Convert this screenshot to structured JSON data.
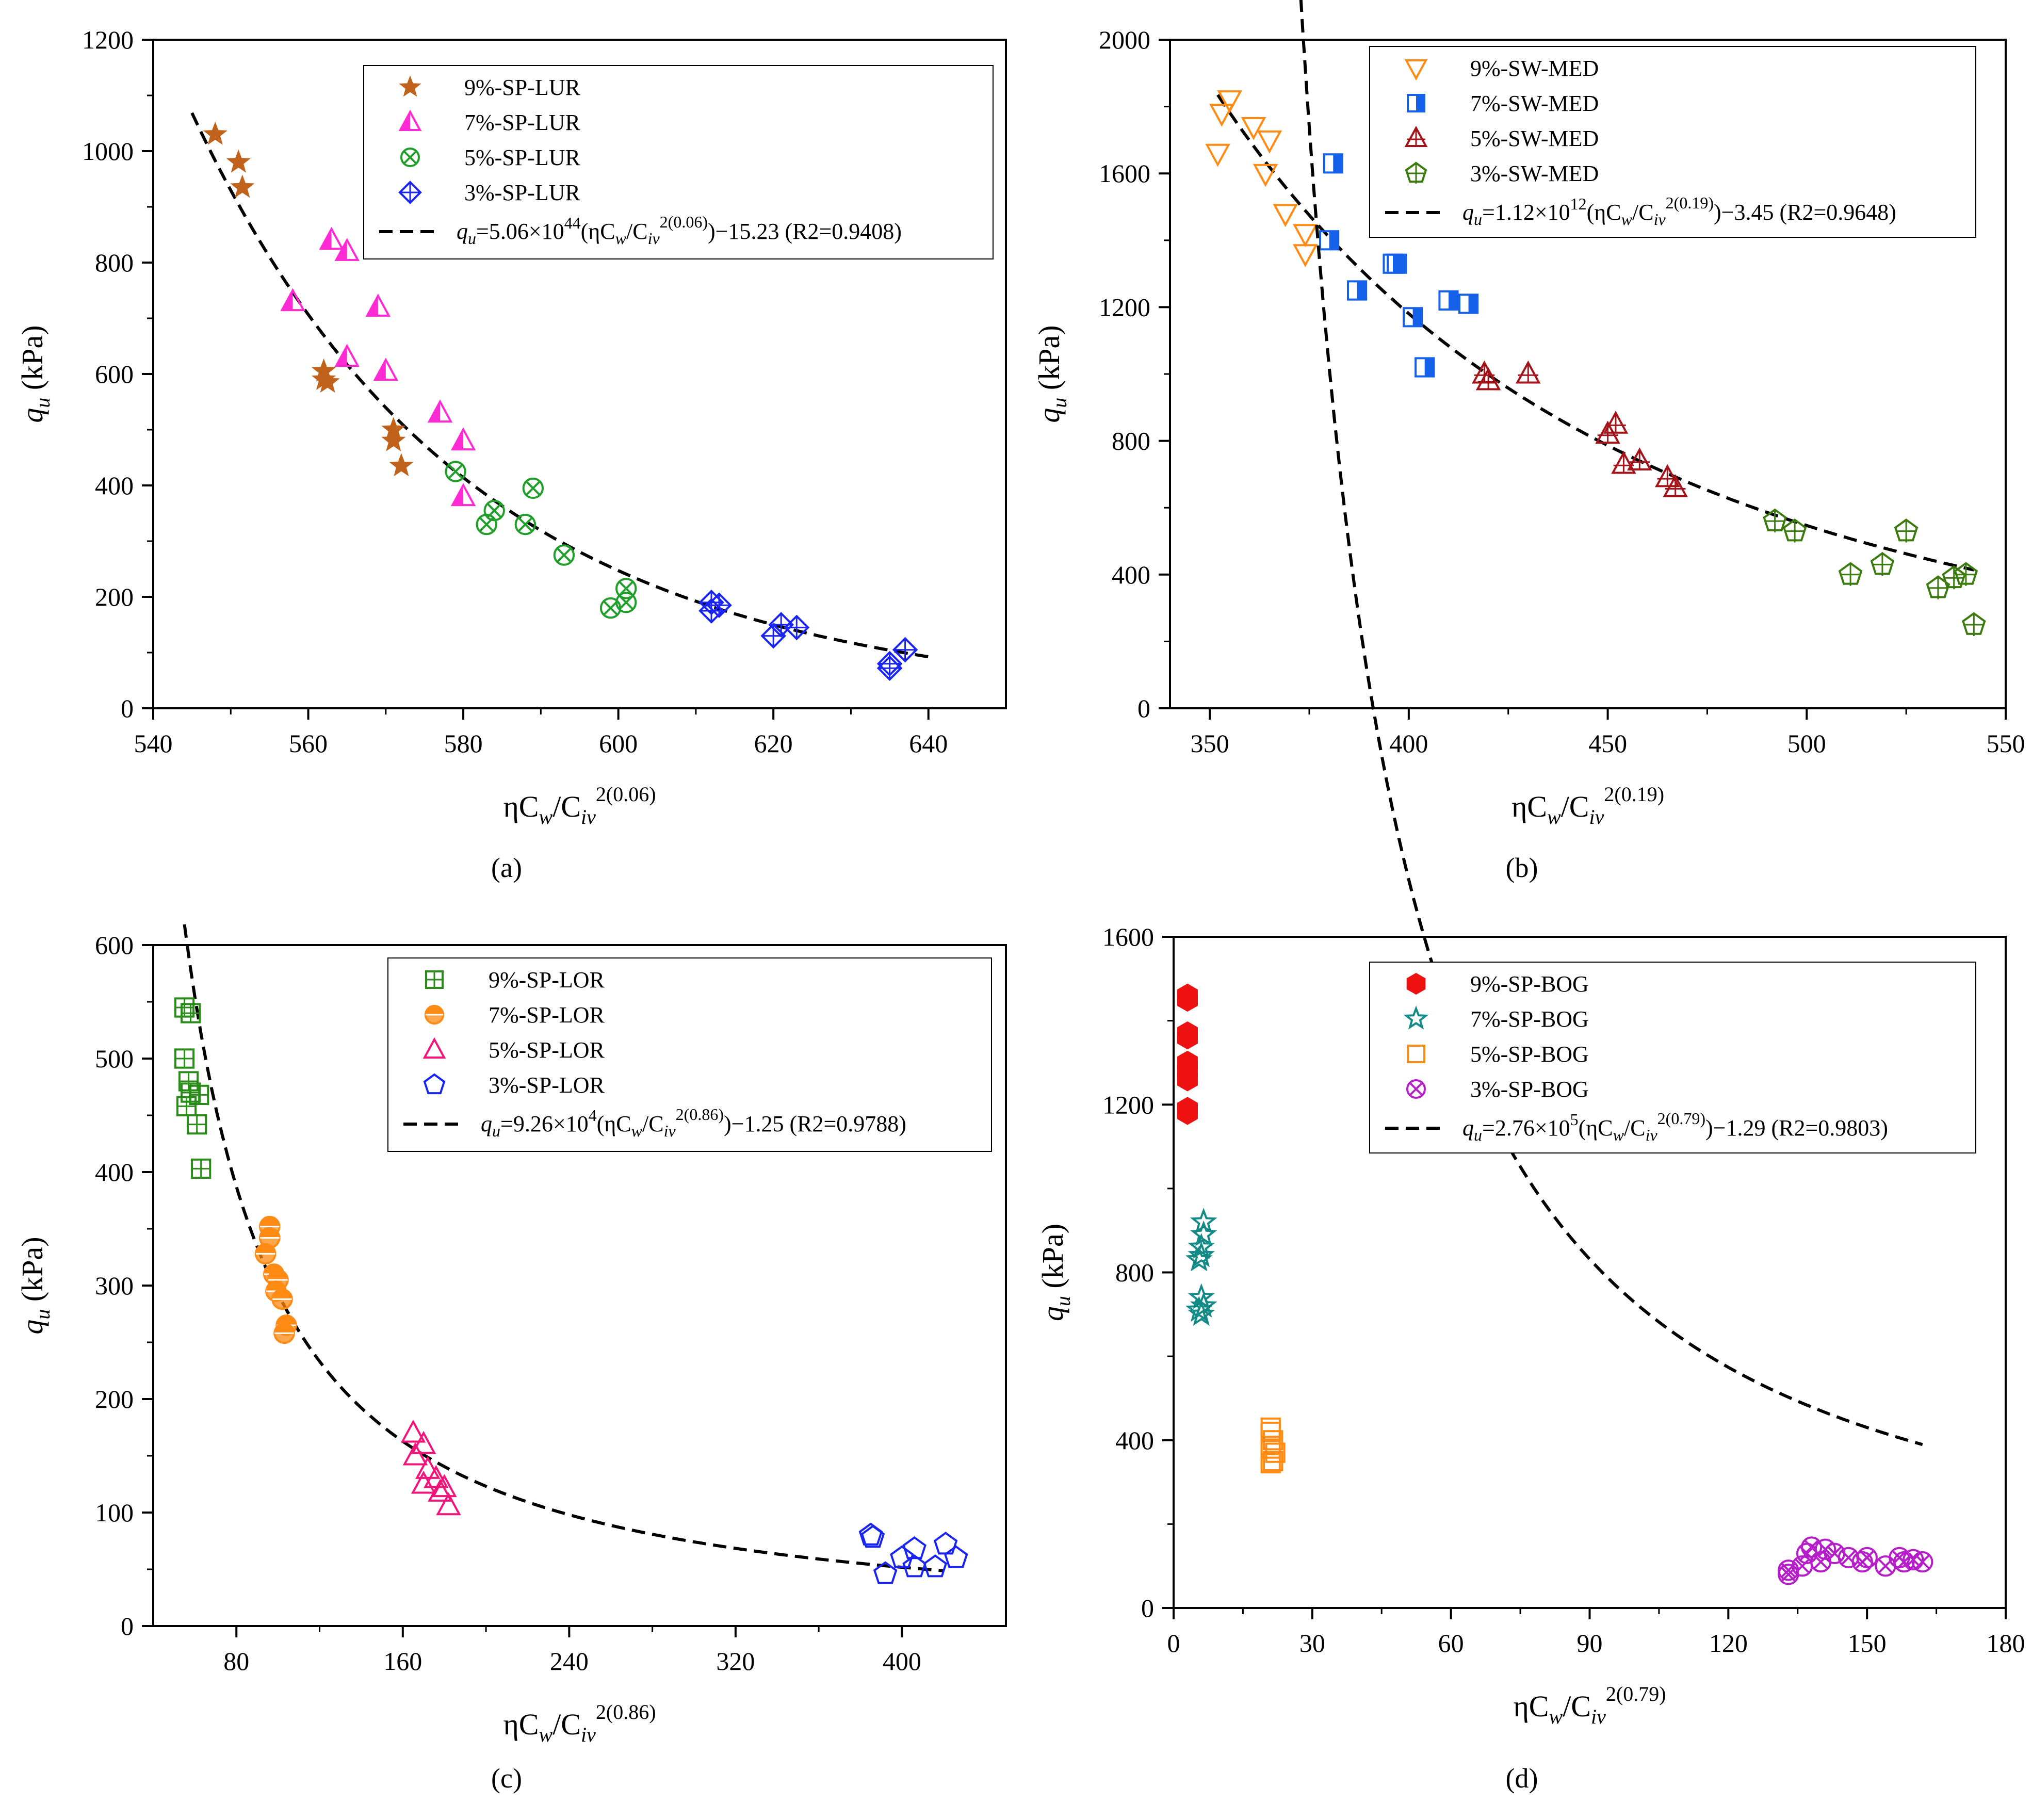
{
  "colors": {
    "axis": "#000000",
    "fit": "#000000",
    "brown": "#c0621b",
    "magenta": "#ff2ad4",
    "green": "#1f9e2a",
    "blue": "#1a24f0",
    "orange": "#ff8a14",
    "blue_b": "#1560e8",
    "darkred": "#a3141a",
    "darkgreen": "#3a7a0e",
    "green_c": "#2a8a1a",
    "pink": "#f0157a",
    "red": "#ee1111",
    "teal": "#148a86",
    "purple": "#b51ec8"
  },
  "chart_data": [
    {
      "id": "a",
      "type": "scatter",
      "panel_label": "(a)",
      "xlabel": "ηCw/Civ2(0.06)",
      "xlabel_parts": {
        "main": "ηC",
        "sub1": "w",
        "mid": "/C",
        "sub2": "iv",
        "sup": "2(0.06)"
      },
      "ylabel": "qu (kPa)",
      "ylabel_parts": {
        "main": "q",
        "sub": "u",
        "rest": " (kPa)"
      },
      "xlim": [
        540,
        650
      ],
      "ylim": [
        0,
        1200
      ],
      "xticks": [
        540,
        560,
        580,
        600,
        620,
        640
      ],
      "xtick_labels": [
        "540",
        "560",
        "580",
        "600",
        "620",
        "640"
      ],
      "yticks": [
        0,
        200,
        400,
        600,
        800,
        1000,
        1200
      ],
      "ytick_labels": [
        "0",
        "200",
        "400",
        "600",
        "800",
        "1000",
        "1200"
      ],
      "legend_position": "top-right",
      "series": [
        {
          "name": "9%-SP-LUR",
          "marker": "star",
          "color": "brown",
          "points": [
            [
              548,
              1030
            ],
            [
              551,
              980
            ],
            [
              551.5,
              935
            ],
            [
              562,
              605
            ],
            [
              562,
              590
            ],
            [
              562.5,
              585
            ],
            [
              571,
              500
            ],
            [
              571,
              480
            ],
            [
              572,
              435
            ]
          ]
        },
        {
          "name": "7%-SP-LUR",
          "marker": "tri-half",
          "color": "magenta",
          "points": [
            [
              563,
              840
            ],
            [
              565,
              820
            ],
            [
              558,
              730
            ],
            [
              569,
              720
            ],
            [
              565,
              630
            ],
            [
              570,
              605
            ],
            [
              577,
              530
            ],
            [
              580,
              480
            ],
            [
              580,
              380
            ]
          ]
        },
        {
          "name": "5%-SP-LUR",
          "marker": "circle-x",
          "color": "green",
          "points": [
            [
              579,
              425
            ],
            [
              584,
              355
            ],
            [
              583,
              330
            ],
            [
              588,
              330
            ],
            [
              589,
              395
            ],
            [
              593,
              275
            ],
            [
              599,
              180
            ],
            [
              601,
              190
            ],
            [
              601,
              215
            ]
          ]
        },
        {
          "name": "3%-SP-LUR",
          "marker": "diamond-plus",
          "color": "blue",
          "points": [
            [
              612,
              190
            ],
            [
              612,
              175
            ],
            [
              613,
              185
            ],
            [
              620,
              130
            ],
            [
              621,
              150
            ],
            [
              623,
              145
            ],
            [
              635,
              80
            ],
            [
              635,
              72
            ],
            [
              637,
              105
            ]
          ]
        }
      ],
      "fit": {
        "label_prefix": "q",
        "label_sub": "u",
        "label_body": "=5.06×10",
        "label_exp": "44",
        "label_inner": "(ηC",
        "label_w": "w",
        "label_slash": "/C",
        "label_iv": "iv",
        "label_sup": "2(0.06)",
        "label_power": ")−15.23",
        "label_r2": "(R2=0.9408)",
        "A": 5.06e+44,
        "B": -15.23,
        "x_range": [
          545,
          640
        ]
      }
    },
    {
      "id": "b",
      "type": "scatter",
      "panel_label": "(b)",
      "xlabel": "ηCw/Civ2(0.19)",
      "xlabel_parts": {
        "main": "ηC",
        "sub1": "w",
        "mid": "/C",
        "sub2": "iv",
        "sup": "2(0.19)"
      },
      "ylabel": "qu (kPa)",
      "ylabel_parts": {
        "main": "q",
        "sub": "u",
        "rest": " (kPa)"
      },
      "xlim": [
        340,
        550
      ],
      "ylim": [
        0,
        2000
      ],
      "xticks": [
        350,
        400,
        450,
        500,
        550
      ],
      "xtick_labels": [
        "350",
        "400",
        "450",
        "500",
        "550"
      ],
      "yticks": [
        0,
        400,
        800,
        1200,
        1600,
        2000
      ],
      "ytick_labels": [
        "0",
        "400",
        "800",
        "1200",
        "1600",
        "2000"
      ],
      "legend_position": "top-right",
      "series": [
        {
          "name": "9%-SW-MED",
          "marker": "tri-down",
          "color": "orange",
          "points": [
            [
              353,
              1780
            ],
            [
              355,
              1820
            ],
            [
              352,
              1660
            ],
            [
              361,
              1740
            ],
            [
              365,
              1700
            ],
            [
              364,
              1600
            ],
            [
              369,
              1480
            ],
            [
              374,
              1420
            ],
            [
              374,
              1360
            ]
          ]
        },
        {
          "name": "7%-SW-MED",
          "marker": "square-half",
          "color": "blue_b",
          "points": [
            [
              381,
              1630
            ],
            [
              380,
              1400
            ],
            [
              387,
              1250
            ],
            [
              396,
              1330
            ],
            [
              397,
              1330
            ],
            [
              401,
              1170
            ],
            [
              404,
              1020
            ],
            [
              410,
              1220
            ],
            [
              415,
              1210
            ]
          ]
        },
        {
          "name": "5%-SW-MED",
          "marker": "tri-plus",
          "color": "darkred",
          "points": [
            [
              419,
              1000
            ],
            [
              420,
              980
            ],
            [
              430,
              1000
            ],
            [
              450,
              820
            ],
            [
              452,
              850
            ],
            [
              454,
              730
            ],
            [
              458,
              740
            ],
            [
              465,
              690
            ],
            [
              467,
              660
            ]
          ]
        },
        {
          "name": "3%-SW-MED",
          "marker": "pentagon-plus",
          "color": "darkgreen",
          "points": [
            [
              492,
              560
            ],
            [
              497,
              530
            ],
            [
              511,
              400
            ],
            [
              519,
              430
            ],
            [
              525,
              530
            ],
            [
              533,
              360
            ],
            [
              537,
              390
            ],
            [
              540,
              400
            ],
            [
              542,
              250
            ]
          ]
        }
      ],
      "fit": {
        "label_prefix": "q",
        "label_sub": "u",
        "label_body": "=1.12×10",
        "label_exp": "12",
        "label_inner": "(ηC",
        "label_w": "w",
        "label_slash": "/C",
        "label_iv": "iv",
        "label_sup": "2(0.19)",
        "label_power": ")−3.45",
        "label_r2": "(R2=0.9648)",
        "A": 1120000000000.0,
        "B": -3.45,
        "x_range": [
          352,
          542
        ]
      }
    },
    {
      "id": "c",
      "type": "scatter",
      "panel_label": "(c)",
      "xlabel": "ηCw/Civ2(0.86)",
      "xlabel_parts": {
        "main": "ηC",
        "sub1": "w",
        "mid": "/C",
        "sub2": "iv",
        "sup": "2(0.86)"
      },
      "ylabel": "qu (kPa)",
      "ylabel_parts": {
        "main": "q",
        "sub": "u",
        "rest": " (kPa)"
      },
      "xlim": [
        40,
        450
      ],
      "ylim": [
        0,
        600
      ],
      "xticks": [
        80,
        160,
        240,
        320,
        400
      ],
      "xtick_labels": [
        "80",
        "160",
        "240",
        "320",
        "400"
      ],
      "yticks": [
        0,
        100,
        200,
        300,
        400,
        500,
        600
      ],
      "ytick_labels": [
        "0",
        "100",
        "200",
        "300",
        "400",
        "500",
        "600"
      ],
      "legend_position": "top-right",
      "series": [
        {
          "name": "9%-SP-LOR",
          "marker": "square-plus",
          "color": "green_c",
          "points": [
            [
              55,
              545
            ],
            [
              58,
              540
            ],
            [
              55,
              500
            ],
            [
              57,
              480
            ],
            [
              58,
              470
            ],
            [
              62,
              468
            ],
            [
              56,
              458
            ],
            [
              61,
              442
            ],
            [
              63,
              403
            ]
          ]
        },
        {
          "name": "7%-SP-LOR",
          "marker": "circle-half",
          "color": "orange",
          "points": [
            [
              96,
              352
            ],
            [
              96,
              342
            ],
            [
              94,
              328
            ],
            [
              98,
              310
            ],
            [
              100,
              305
            ],
            [
              99,
              295
            ],
            [
              102,
              288
            ],
            [
              104,
              265
            ],
            [
              103,
              258
            ]
          ]
        },
        {
          "name": "5%-SP-LOR",
          "marker": "tri-up",
          "color": "pink",
          "points": [
            [
              165,
              170
            ],
            [
              170,
              160
            ],
            [
              166,
              150
            ],
            [
              172,
              138
            ],
            [
              170,
              125
            ],
            [
              176,
              130
            ],
            [
              180,
              122
            ],
            [
              178,
              118
            ],
            [
              182,
              106
            ]
          ]
        },
        {
          "name": "3%-SP-LOR",
          "marker": "pentagon",
          "color": "blue",
          "points": [
            [
              385,
              80
            ],
            [
              386,
              78
            ],
            [
              392,
              46
            ],
            [
              400,
              60
            ],
            [
              406,
              68
            ],
            [
              406,
              52
            ],
            [
              416,
              52
            ],
            [
              421,
              72
            ],
            [
              426,
              60
            ]
          ]
        }
      ],
      "fit": {
        "label_prefix": "q",
        "label_sub": "u",
        "label_body": "=9.26×10",
        "label_exp": "4",
        "label_inner": "(ηC",
        "label_w": "w",
        "label_slash": "/C",
        "label_iv": "iv",
        "label_sup": "2(0.86)",
        "label_power": ")−1.25",
        "label_r2": "(R2=0.9788)",
        "A": 92600,
        "B": -1.25,
        "x_range": [
          55,
          420
        ]
      }
    },
    {
      "id": "d",
      "type": "scatter",
      "panel_label": "(d)",
      "xlabel": "ηCw/Civ2(0.79)",
      "xlabel_parts": {
        "main": "ηC",
        "sub1": "w",
        "mid": "/C",
        "sub2": "iv",
        "sup": "2(0.79)"
      },
      "ylabel": "qu (kPa)",
      "ylabel_parts": {
        "main": "q",
        "sub": "u",
        "rest": " (kPa)"
      },
      "xlim": [
        0,
        180
      ],
      "ylim": [
        0,
        1600
      ],
      "xticks": [
        0,
        30,
        60,
        90,
        120,
        150,
        180
      ],
      "xtick_labels": [
        "0",
        "30",
        "60",
        "90",
        "120",
        "150",
        "180"
      ],
      "yticks": [
        0,
        400,
        800,
        1200,
        1600
      ],
      "ytick_labels": [
        "0",
        "400",
        "800",
        "1200",
        "1600"
      ],
      "legend_position": "top-right",
      "series": [
        {
          "name": "9%-SP-BOG",
          "marker": "hexagon",
          "color": "red",
          "points": [
            [
              3,
              1460
            ],
            [
              3,
              1450
            ],
            [
              3,
              1370
            ],
            [
              3,
              1360
            ],
            [
              3,
              1300
            ],
            [
              3,
              1280
            ],
            [
              3,
              1260
            ],
            [
              3,
              1190
            ],
            [
              3,
              1180
            ]
          ]
        },
        {
          "name": "7%-SP-BOG",
          "marker": "star-open",
          "color": "teal",
          "points": [
            [
              6.5,
              920
            ],
            [
              6.5,
              890
            ],
            [
              6,
              860
            ],
            [
              6,
              840
            ],
            [
              5.5,
              830
            ],
            [
              6,
              740
            ],
            [
              6.5,
              720
            ],
            [
              5.5,
              710
            ],
            [
              6,
              700
            ]
          ]
        },
        {
          "name": "5%-SP-BOG",
          "marker": "square",
          "color": "orange",
          "points": [
            [
              21,
              430
            ],
            [
              21,
              420
            ],
            [
              21.5,
              400
            ],
            [
              21,
              380
            ],
            [
              22,
              370
            ],
            [
              21.5,
              350
            ],
            [
              21,
              345
            ]
          ]
        },
        {
          "name": "3%-SP-BOG",
          "marker": "circle-x",
          "color": "purple",
          "points": [
            [
              133,
              90
            ],
            [
              133,
              80
            ],
            [
              136,
              100
            ],
            [
              137,
              130
            ],
            [
              138,
              145
            ],
            [
              140,
              110
            ],
            [
              141,
              140
            ],
            [
              143,
              130
            ],
            [
              146,
              120
            ],
            [
              149,
              110
            ],
            [
              150,
              120
            ],
            [
              154,
              100
            ],
            [
              157,
              120
            ],
            [
              158,
              110
            ],
            [
              160,
              115
            ],
            [
              162,
              110
            ]
          ]
        }
      ],
      "fit": {
        "label_prefix": "q",
        "label_sub": "u",
        "label_body": "=2.76×10",
        "label_exp": "5",
        "label_inner": "(ηC",
        "label_w": "w",
        "label_slash": "/C",
        "label_iv": "iv",
        "label_sup": "2(0.79)",
        "label_power": ")−1.29",
        "label_r2": "(R2=0.9803)",
        "A": 276000,
        "B": -1.29,
        "x_range": [
          3,
          162
        ]
      }
    }
  ]
}
